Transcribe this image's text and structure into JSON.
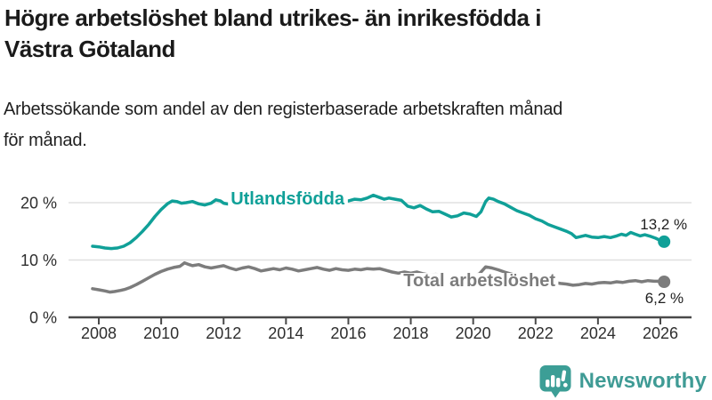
{
  "header": {
    "title_lines": [
      "Högre arbetslöshet bland utrikes- än inrikesfödda i",
      "Västra Götaland"
    ],
    "subtitle_lines": [
      "Arbetssökande som andel av den registerbaserade arbetskraften månad",
      "för månad."
    ]
  },
  "chart_data": {
    "type": "line",
    "title": "Högre arbetslöshet bland utrikes- än inrikesfödda i Västra Götaland",
    "subtitle": "Arbetssökande som andel av den registerbaserade arbetskraften månad för månad.",
    "unit": "%",
    "x_axis": {
      "ticks": [
        2008,
        2010,
        2012,
        2014,
        2016,
        2018,
        2020,
        2022,
        2024,
        2026
      ],
      "range": [
        2007.0,
        2027.0
      ]
    },
    "y_axis": {
      "ticks": [
        {
          "value": 0,
          "label": "0 %"
        },
        {
          "value": 10,
          "label": "10 %"
        },
        {
          "value": 20,
          "label": "20 %"
        }
      ],
      "gridlines": [
        10,
        20
      ],
      "range": [
        0,
        22
      ]
    },
    "colors": {
      "grid": "#e0e0e0",
      "axis": "#4a4a4a",
      "tick_text": "#2e2e2e"
    },
    "series": [
      {
        "id": "utlandsfodda",
        "name": "Utlandsfödda",
        "color": "#10a098",
        "label": {
          "text": "Utlandsfödda",
          "at_year": 2014.05,
          "at_value": 20.8
        },
        "end_label": {
          "text": "13,2 %",
          "position": "above",
          "value": 13.2
        },
        "points": [
          [
            2007.8,
            12.4
          ],
          [
            2008.0,
            12.3
          ],
          [
            2008.2,
            12.1
          ],
          [
            2008.4,
            12.0
          ],
          [
            2008.6,
            12.1
          ],
          [
            2008.8,
            12.4
          ],
          [
            2009.0,
            13.0
          ],
          [
            2009.2,
            13.9
          ],
          [
            2009.4,
            15.0
          ],
          [
            2009.6,
            16.2
          ],
          [
            2009.8,
            17.6
          ],
          [
            2010.0,
            18.8
          ],
          [
            2010.2,
            19.8
          ],
          [
            2010.35,
            20.3
          ],
          [
            2010.5,
            20.2
          ],
          [
            2010.65,
            19.9
          ],
          [
            2010.8,
            20.0
          ],
          [
            2011.0,
            20.2
          ],
          [
            2011.2,
            19.8
          ],
          [
            2011.4,
            19.6
          ],
          [
            2011.6,
            19.9
          ],
          [
            2011.75,
            20.5
          ],
          [
            2011.9,
            20.3
          ],
          [
            2012.0,
            19.9
          ],
          [
            2012.2,
            19.7
          ],
          [
            2012.4,
            20.0
          ],
          [
            2012.6,
            20.3
          ],
          [
            2012.8,
            20.1
          ],
          [
            2013.0,
            20.4
          ],
          [
            2013.3,
            20.2
          ],
          [
            2013.6,
            20.3
          ],
          [
            2013.9,
            20.1
          ],
          [
            2014.2,
            20.3
          ],
          [
            2014.5,
            20.2
          ],
          [
            2014.8,
            20.4
          ],
          [
            2015.1,
            20.2
          ],
          [
            2015.4,
            20.3
          ],
          [
            2015.7,
            20.5
          ],
          [
            2016.0,
            20.3
          ],
          [
            2016.2,
            20.6
          ],
          [
            2016.4,
            20.5
          ],
          [
            2016.6,
            20.8
          ],
          [
            2016.8,
            21.3
          ],
          [
            2017.0,
            20.9
          ],
          [
            2017.15,
            20.6
          ],
          [
            2017.3,
            20.8
          ],
          [
            2017.5,
            20.6
          ],
          [
            2017.7,
            20.4
          ],
          [
            2017.9,
            19.4
          ],
          [
            2018.1,
            19.1
          ],
          [
            2018.3,
            19.5
          ],
          [
            2018.5,
            18.9
          ],
          [
            2018.7,
            18.4
          ],
          [
            2018.9,
            18.5
          ],
          [
            2019.1,
            18.0
          ],
          [
            2019.3,
            17.5
          ],
          [
            2019.5,
            17.7
          ],
          [
            2019.7,
            18.2
          ],
          [
            2019.9,
            18.0
          ],
          [
            2020.1,
            17.6
          ],
          [
            2020.25,
            18.4
          ],
          [
            2020.4,
            20.2
          ],
          [
            2020.5,
            20.8
          ],
          [
            2020.65,
            20.6
          ],
          [
            2020.8,
            20.2
          ],
          [
            2021.0,
            19.8
          ],
          [
            2021.2,
            19.2
          ],
          [
            2021.4,
            18.6
          ],
          [
            2021.6,
            18.2
          ],
          [
            2021.8,
            17.8
          ],
          [
            2022.0,
            17.2
          ],
          [
            2022.2,
            16.8
          ],
          [
            2022.4,
            16.2
          ],
          [
            2022.6,
            15.8
          ],
          [
            2022.8,
            15.4
          ],
          [
            2023.0,
            15.0
          ],
          [
            2023.15,
            14.6
          ],
          [
            2023.3,
            13.9
          ],
          [
            2023.45,
            14.1
          ],
          [
            2023.6,
            14.3
          ],
          [
            2023.8,
            14.0
          ],
          [
            2024.0,
            13.9
          ],
          [
            2024.2,
            14.1
          ],
          [
            2024.4,
            13.9
          ],
          [
            2024.6,
            14.2
          ],
          [
            2024.75,
            14.5
          ],
          [
            2024.9,
            14.3
          ],
          [
            2025.05,
            14.8
          ],
          [
            2025.2,
            14.5
          ],
          [
            2025.35,
            14.2
          ],
          [
            2025.5,
            14.4
          ],
          [
            2025.7,
            14.1
          ],
          [
            2025.85,
            13.8
          ],
          [
            2026.0,
            13.4
          ],
          [
            2026.12,
            13.2
          ]
        ]
      },
      {
        "id": "total",
        "name": "Total arbetslöshet",
        "color": "#7c7c7c",
        "label": {
          "text": "Total arbetslöshet",
          "at_year": 2020.2,
          "at_value": 6.5
        },
        "end_label": {
          "text": "6,2 %",
          "position": "below",
          "value": 6.2
        },
        "points": [
          [
            2007.8,
            5.0
          ],
          [
            2008.0,
            4.8
          ],
          [
            2008.2,
            4.6
          ],
          [
            2008.35,
            4.4
          ],
          [
            2008.5,
            4.5
          ],
          [
            2008.7,
            4.7
          ],
          [
            2008.85,
            4.9
          ],
          [
            2009.0,
            5.2
          ],
          [
            2009.2,
            5.7
          ],
          [
            2009.4,
            6.3
          ],
          [
            2009.6,
            6.9
          ],
          [
            2009.8,
            7.5
          ],
          [
            2010.0,
            8.0
          ],
          [
            2010.2,
            8.4
          ],
          [
            2010.4,
            8.7
          ],
          [
            2010.6,
            8.9
          ],
          [
            2010.75,
            9.5
          ],
          [
            2010.9,
            9.2
          ],
          [
            2011.0,
            9.0
          ],
          [
            2011.2,
            9.2
          ],
          [
            2011.4,
            8.8
          ],
          [
            2011.6,
            8.6
          ],
          [
            2011.8,
            8.8
          ],
          [
            2012.0,
            9.0
          ],
          [
            2012.2,
            8.6
          ],
          [
            2012.4,
            8.3
          ],
          [
            2012.6,
            8.6
          ],
          [
            2012.8,
            8.8
          ],
          [
            2013.0,
            8.5
          ],
          [
            2013.2,
            8.1
          ],
          [
            2013.4,
            8.3
          ],
          [
            2013.6,
            8.5
          ],
          [
            2013.8,
            8.3
          ],
          [
            2014.0,
            8.6
          ],
          [
            2014.2,
            8.4
          ],
          [
            2014.4,
            8.1
          ],
          [
            2014.6,
            8.3
          ],
          [
            2014.8,
            8.5
          ],
          [
            2015.0,
            8.7
          ],
          [
            2015.2,
            8.4
          ],
          [
            2015.4,
            8.2
          ],
          [
            2015.6,
            8.5
          ],
          [
            2015.8,
            8.3
          ],
          [
            2016.0,
            8.2
          ],
          [
            2016.2,
            8.4
          ],
          [
            2016.4,
            8.3
          ],
          [
            2016.6,
            8.5
          ],
          [
            2016.8,
            8.4
          ],
          [
            2017.0,
            8.5
          ],
          [
            2017.2,
            8.2
          ],
          [
            2017.4,
            7.9
          ],
          [
            2017.6,
            7.7
          ],
          [
            2017.8,
            7.9
          ],
          [
            2018.0,
            7.7
          ],
          [
            2018.2,
            7.9
          ],
          [
            2018.4,
            7.6
          ],
          [
            2018.6,
            7.4
          ],
          [
            2018.8,
            7.5
          ],
          [
            2019.0,
            7.3
          ],
          [
            2019.2,
            7.2
          ],
          [
            2019.4,
            7.0
          ],
          [
            2019.6,
            7.2
          ],
          [
            2019.8,
            7.1
          ],
          [
            2020.0,
            7.2
          ],
          [
            2020.2,
            7.6
          ],
          [
            2020.4,
            8.8
          ],
          [
            2020.6,
            8.6
          ],
          [
            2020.8,
            8.3
          ],
          [
            2021.0,
            7.9
          ],
          [
            2021.2,
            7.6
          ],
          [
            2021.4,
            7.3
          ],
          [
            2021.6,
            7.1
          ],
          [
            2021.8,
            6.9
          ],
          [
            2022.0,
            6.7
          ],
          [
            2022.2,
            6.5
          ],
          [
            2022.4,
            6.3
          ],
          [
            2022.6,
            6.1
          ],
          [
            2022.8,
            5.9
          ],
          [
            2023.0,
            5.8
          ],
          [
            2023.2,
            5.6
          ],
          [
            2023.4,
            5.7
          ],
          [
            2023.6,
            5.9
          ],
          [
            2023.8,
            5.8
          ],
          [
            2024.0,
            6.0
          ],
          [
            2024.2,
            6.1
          ],
          [
            2024.4,
            6.0
          ],
          [
            2024.6,
            6.2
          ],
          [
            2024.8,
            6.1
          ],
          [
            2025.0,
            6.3
          ],
          [
            2025.2,
            6.4
          ],
          [
            2025.4,
            6.2
          ],
          [
            2025.6,
            6.4
          ],
          [
            2025.8,
            6.3
          ],
          [
            2026.0,
            6.3
          ],
          [
            2026.12,
            6.2
          ]
        ]
      }
    ],
    "legend_position": "inline-labels",
    "grid": "horizontal-only"
  },
  "footer": {
    "brand": "Newsworthy",
    "logo_color": "#3c9e96"
  }
}
